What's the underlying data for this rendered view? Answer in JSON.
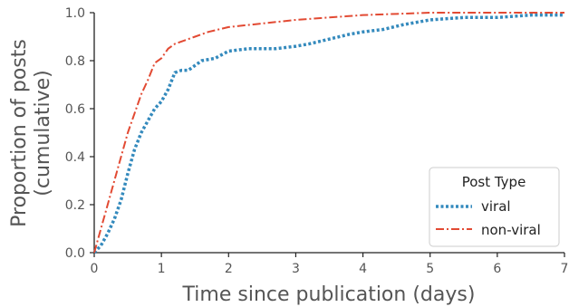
{
  "chart_data": {
    "type": "line",
    "xlabel": "Time since publication (days)",
    "ylabel_lines": [
      "Proportion of posts",
      "(cumulative)"
    ],
    "xlim": [
      0,
      7
    ],
    "ylim": [
      0,
      1
    ],
    "xticks": [
      0,
      1,
      2,
      3,
      4,
      5,
      6,
      7
    ],
    "yticks": [
      0.0,
      0.2,
      0.4,
      0.6,
      0.8,
      1.0
    ],
    "xtick_labels": [
      "0",
      "1",
      "2",
      "3",
      "4",
      "5",
      "6",
      "7"
    ],
    "ytick_labels": [
      "0.0",
      "0.2",
      "0.4",
      "0.6",
      "0.8",
      "1.0"
    ],
    "grid": false,
    "legend": {
      "title": "Post Type",
      "position": "lower-right"
    },
    "series": [
      {
        "name": "viral",
        "color": "#348abd",
        "style": "dotted",
        "x": [
          0.0,
          0.1,
          0.2,
          0.3,
          0.4,
          0.5,
          0.6,
          0.7,
          0.8,
          0.9,
          1.0,
          1.1,
          1.2,
          1.3,
          1.4,
          1.5,
          1.6,
          1.8,
          2.0,
          2.3,
          2.7,
          3.0,
          3.2,
          3.5,
          3.8,
          4.0,
          4.3,
          4.6,
          5.0,
          5.5,
          6.0,
          6.5,
          7.0
        ],
        "y": [
          0.0,
          0.03,
          0.08,
          0.14,
          0.22,
          0.33,
          0.43,
          0.5,
          0.55,
          0.6,
          0.63,
          0.68,
          0.75,
          0.76,
          0.76,
          0.78,
          0.8,
          0.81,
          0.84,
          0.85,
          0.85,
          0.86,
          0.87,
          0.89,
          0.91,
          0.92,
          0.93,
          0.95,
          0.97,
          0.98,
          0.98,
          0.99,
          0.99
        ]
      },
      {
        "name": "non-viral",
        "color": "#e24a33",
        "style": "dashdot",
        "x": [
          0.0,
          0.1,
          0.2,
          0.3,
          0.4,
          0.5,
          0.6,
          0.7,
          0.8,
          0.9,
          1.0,
          1.1,
          1.2,
          1.3,
          1.5,
          1.7,
          2.0,
          2.5,
          3.0,
          3.5,
          4.0,
          4.5,
          5.0,
          6.0,
          7.0
        ],
        "y": [
          0.0,
          0.1,
          0.2,
          0.3,
          0.4,
          0.5,
          0.58,
          0.66,
          0.72,
          0.79,
          0.81,
          0.85,
          0.87,
          0.88,
          0.9,
          0.92,
          0.94,
          0.955,
          0.97,
          0.98,
          0.99,
          0.995,
          1.0,
          1.0,
          1.0
        ]
      }
    ]
  }
}
